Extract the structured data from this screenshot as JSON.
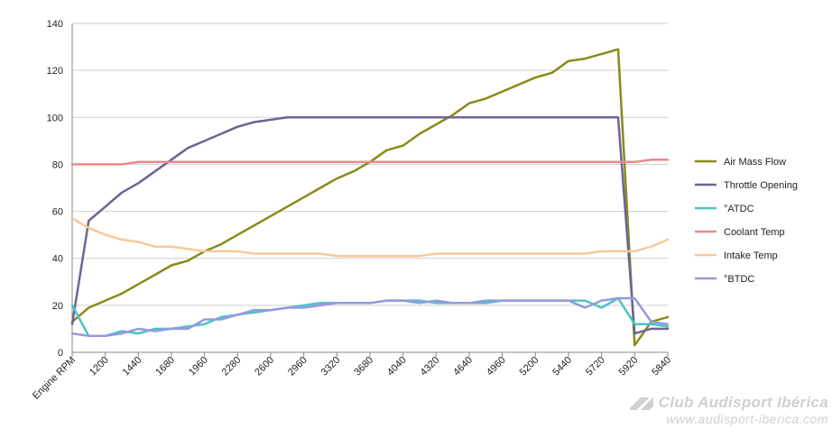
{
  "chart_data": {
    "type": "line",
    "title": "",
    "xlabel": "",
    "ylabel": "",
    "ylim": [
      0,
      140
    ],
    "y_ticks": [
      0,
      20,
      40,
      60,
      80,
      100,
      120,
      140
    ],
    "grid": "horizontal",
    "legend_position": "right",
    "x_tick_labels": [
      "Engine RPM",
      "1200",
      "1440",
      "1680",
      "1960",
      "2280",
      "2600",
      "2960",
      "3320",
      "3680",
      "4040",
      "4320",
      "4640",
      "4960",
      "5200",
      "5440",
      "5720",
      "5920",
      "5840"
    ],
    "series": [
      {
        "name": "Air Mass Flow",
        "color": "#8a8a1a",
        "values": [
          13,
          19,
          22,
          25,
          29,
          33,
          37,
          39,
          43,
          46,
          50,
          54,
          58,
          62,
          66,
          70,
          74,
          77,
          81,
          86,
          88,
          93,
          97,
          101,
          106,
          108,
          111,
          114,
          117,
          119,
          124,
          125,
          127,
          129,
          3,
          13,
          15
        ]
      },
      {
        "name": "Throttle Opening",
        "color": "#6e6496",
        "values": [
          12,
          56,
          62,
          68,
          72,
          77,
          82,
          87,
          90,
          93,
          96,
          98,
          99,
          100,
          100,
          100,
          100,
          100,
          100,
          100,
          100,
          100,
          100,
          100,
          100,
          100,
          100,
          100,
          100,
          100,
          100,
          100,
          100,
          100,
          8,
          10,
          10
        ]
      },
      {
        "name": "°ATDC",
        "color": "#4cc3c3",
        "values": [
          20,
          7,
          7,
          9,
          8,
          10,
          10,
          11,
          12,
          15,
          16,
          17,
          18,
          19,
          20,
          21,
          21,
          21,
          21,
          22,
          22,
          22,
          21,
          21,
          21,
          21,
          22,
          22,
          22,
          22,
          22,
          22,
          19,
          23,
          12,
          12,
          11
        ]
      },
      {
        "name": "Coolant Temp",
        "color": "#e88a8a",
        "values": [
          80,
          80,
          80,
          80,
          81,
          81,
          81,
          81,
          81,
          81,
          81,
          81,
          81,
          81,
          81,
          81,
          81,
          81,
          81,
          81,
          81,
          81,
          81,
          81,
          81,
          81,
          81,
          81,
          81,
          81,
          81,
          81,
          81,
          81,
          81,
          82,
          82
        ]
      },
      {
        "name": "Intake Temp",
        "color": "#f7c99a",
        "values": [
          57,
          53,
          50,
          48,
          47,
          45,
          45,
          44,
          43,
          43,
          43,
          42,
          42,
          42,
          42,
          42,
          41,
          41,
          41,
          41,
          41,
          41,
          42,
          42,
          42,
          42,
          42,
          42,
          42,
          42,
          42,
          42,
          43,
          43,
          43,
          45,
          48
        ]
      },
      {
        "name": "°BTDC",
        "color": "#9898e0",
        "values": [
          8,
          7,
          7,
          8,
          10,
          9,
          10,
          10,
          14,
          14,
          16,
          18,
          18,
          19,
          19,
          20,
          21,
          21,
          21,
          22,
          22,
          21,
          22,
          21,
          21,
          22,
          22,
          22,
          22,
          22,
          22,
          19,
          22,
          23,
          23,
          13,
          12
        ]
      }
    ]
  },
  "watermark": {
    "title": "Club Audisport Ibérica",
    "url": "www.audisport-iberica.com"
  }
}
